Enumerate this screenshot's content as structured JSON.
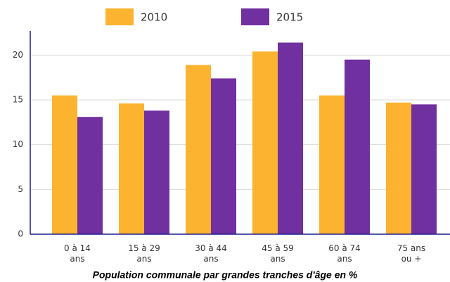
{
  "chart_data": {
    "type": "bar",
    "title": "Population communale par grandes tranches d'âge en %",
    "categories": [
      [
        "0 à 14",
        "ans"
      ],
      [
        "15 à 29",
        "ans"
      ],
      [
        "30 à 44",
        "ans"
      ],
      [
        "45 à 59",
        "ans"
      ],
      [
        "60 à 74",
        "ans"
      ],
      [
        "75 ans",
        "ou +"
      ]
    ],
    "series": [
      {
        "name": "2010",
        "color": "#fbb330",
        "values": [
          15.5,
          14.6,
          18.9,
          20.4,
          15.5,
          14.7
        ]
      },
      {
        "name": "2015",
        "color": "#7030a0",
        "values": [
          13.1,
          13.8,
          17.4,
          21.4,
          19.5,
          14.5
        ]
      }
    ],
    "ylim": [
      0,
      22.7
    ],
    "yticks": [
      0,
      5,
      10,
      15,
      20
    ],
    "grid": true
  }
}
